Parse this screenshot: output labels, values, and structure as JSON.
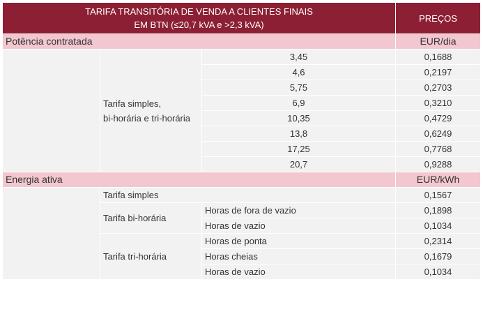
{
  "header": {
    "title_line1": "TARIFA TRANSITÓRIA DE VENDA A CLIENTES FINAIS",
    "title_line2": "EM BTN (≤20,7 kVA e >2,3 kVA)",
    "prices_label": "PREÇOS"
  },
  "potencia": {
    "section_label": "Potência contratada",
    "unit": "EUR/dia",
    "group_label_line1": "Tarifa simples,",
    "group_label_line2": "bi-horária e tri-horária",
    "rows": [
      {
        "kva": "3,45",
        "price": "0,1688"
      },
      {
        "kva": "4,6",
        "price": "0,2197"
      },
      {
        "kva": "5,75",
        "price": "0,2703"
      },
      {
        "kva": "6,9",
        "price": "0,3210"
      },
      {
        "kva": "10,35",
        "price": "0,4729"
      },
      {
        "kva": "13,8",
        "price": "0,6249"
      },
      {
        "kva": "17,25",
        "price": "0,7768"
      },
      {
        "kva": "20,7",
        "price": "0,9288"
      }
    ]
  },
  "energia": {
    "section_label": "Energia ativa",
    "unit": "EUR/kWh",
    "simples": {
      "label": "Tarifa simples",
      "price": "0,1567"
    },
    "bi": {
      "label": "Tarifa bi-horária",
      "rows": [
        {
          "period": "Horas de fora de vazio",
          "price": "0,1898"
        },
        {
          "period": "Horas de vazio",
          "price": "0,1034"
        }
      ]
    },
    "tri": {
      "label": "Tarifa tri-horária",
      "rows": [
        {
          "period": "Horas de ponta",
          "price": "0,2314"
        },
        {
          "period": "Horas cheias",
          "price": "0,1679"
        },
        {
          "period": "Horas de vazio",
          "price": "0,1034"
        }
      ]
    }
  }
}
